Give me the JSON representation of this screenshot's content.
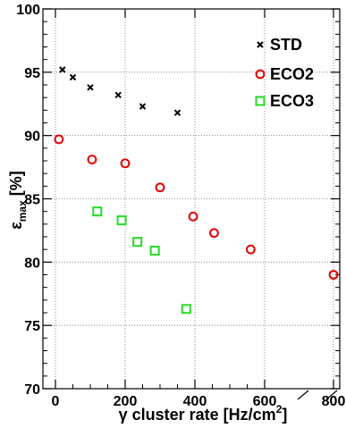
{
  "chart_data": {
    "type": "scatter",
    "x_axis": {
      "label_base": "γ cluster rate [Hz/cm",
      "label_superscript": "2",
      "label_suffix": "]",
      "tick_labels": [
        {
          "value": 0,
          "label": "0"
        },
        {
          "value": 200,
          "label": "200"
        },
        {
          "value": 400,
          "label": "400"
        },
        {
          "value": 600,
          "label": "600"
        },
        {
          "value": 800,
          "label": "800"
        }
      ],
      "broken_axis": true
    },
    "y_axis": {
      "label_main": "ε",
      "label_sub": "max",
      "label_suffix": " [%]",
      "range": [
        70,
        100
      ],
      "ticks": [
        70,
        75,
        80,
        85,
        90,
        95,
        100
      ]
    },
    "grid": true,
    "legend_position": "top-right",
    "series": [
      {
        "name": "STD",
        "marker": "x",
        "color": "#000000",
        "points": [
          {
            "x": 20,
            "y": 95.2
          },
          {
            "x": 50,
            "y": 94.6
          },
          {
            "x": 100,
            "y": 93.8
          },
          {
            "x": 180,
            "y": 93.2
          },
          {
            "x": 250,
            "y": 92.3
          },
          {
            "x": 350,
            "y": 91.8
          }
        ]
      },
      {
        "name": "ECO2",
        "marker": "circle",
        "color": "#e00000",
        "points": [
          {
            "x": 10,
            "y": 89.7
          },
          {
            "x": 105,
            "y": 88.1
          },
          {
            "x": 200,
            "y": 87.8
          },
          {
            "x": 300,
            "y": 85.9
          },
          {
            "x": 395,
            "y": 83.6
          },
          {
            "x": 455,
            "y": 82.3
          },
          {
            "x": 560,
            "y": 81.0
          },
          {
            "x": 800,
            "y": 79.0
          }
        ]
      },
      {
        "name": "ECO3",
        "marker": "square",
        "color": "#22dd22",
        "points": [
          {
            "x": 120,
            "y": 84.0
          },
          {
            "x": 190,
            "y": 83.3
          },
          {
            "x": 235,
            "y": 81.6
          },
          {
            "x": 285,
            "y": 80.9
          },
          {
            "x": 375,
            "y": 76.3
          }
        ]
      }
    ]
  }
}
